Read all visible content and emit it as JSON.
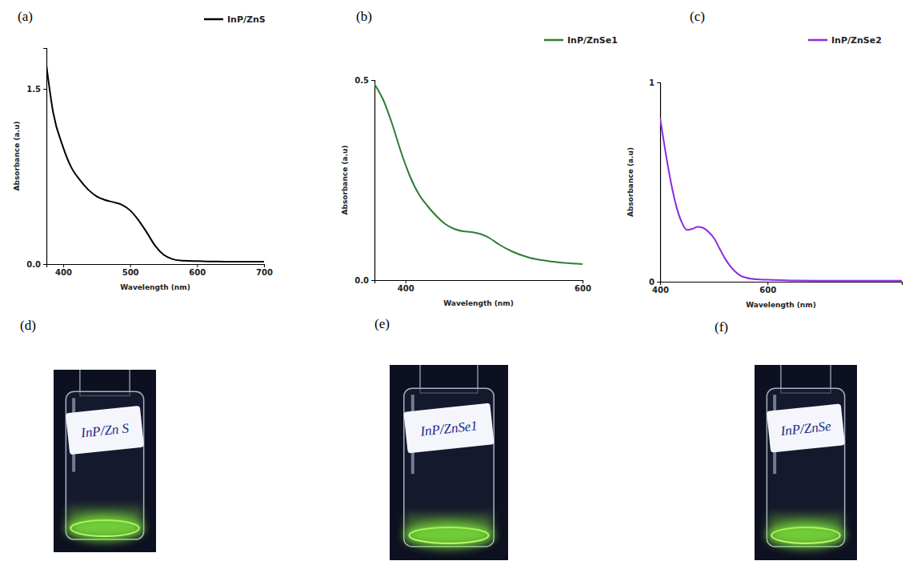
{
  "chart_data": [
    {
      "type": "line",
      "xlabel": "Wavelength (nm)",
      "ylabel": "Absorbance (a.u)",
      "x": [
        375,
        385,
        400,
        412,
        425,
        437,
        450,
        462,
        475,
        487,
        500,
        512,
        525,
        537,
        550,
        562,
        575,
        600,
        625,
        650,
        675,
        700
      ],
      "series": [
        {
          "name": "InP/ZnS",
          "color": "#000000",
          "values": [
            1.7,
            1.3,
            1.0,
            0.83,
            0.72,
            0.64,
            0.58,
            0.55,
            0.53,
            0.51,
            0.46,
            0.38,
            0.27,
            0.16,
            0.08,
            0.045,
            0.03,
            0.025,
            0.022,
            0.02,
            0.02,
            0.02
          ]
        }
      ],
      "xlim": [
        375,
        700
      ],
      "xticks": [
        400,
        500,
        600,
        700
      ],
      "ylim": [
        0,
        1.85
      ],
      "yticks": [
        {
          "value": 0,
          "label": "0.0"
        },
        {
          "value": 1.5,
          "label": "1.5"
        }
      ],
      "legend": "top-right"
    },
    {
      "type": "line",
      "xlabel": "Wavelength (nm)",
      "ylabel": "Absorbance (a.u)",
      "x": [
        365,
        375,
        385,
        395,
        405,
        415,
        425,
        435,
        445,
        455,
        465,
        475,
        485,
        495,
        505,
        520,
        540,
        560,
        580,
        600
      ],
      "series": [
        {
          "name": "InP/ZnSe1",
          "color": "#2e7d32",
          "values": [
            0.49,
            0.45,
            0.39,
            0.32,
            0.26,
            0.215,
            0.185,
            0.16,
            0.14,
            0.128,
            0.122,
            0.12,
            0.115,
            0.105,
            0.09,
            0.072,
            0.056,
            0.048,
            0.043,
            0.04
          ]
        }
      ],
      "xlim": [
        365,
        600
      ],
      "xticks": [
        400,
        600
      ],
      "ylim": [
        0,
        0.5
      ],
      "yticks": [
        {
          "value": 0,
          "label": "0.0"
        },
        {
          "value": 0.5,
          "label": "0.5"
        }
      ],
      "legend": "top-right"
    },
    {
      "type": "line",
      "xlabel": "Wavelength (nm)",
      "ylabel": "Absorbance (a.u)",
      "x": [
        400,
        410,
        420,
        430,
        440,
        450,
        460,
        470,
        480,
        490,
        500,
        510,
        520,
        530,
        540,
        550,
        560,
        580,
        600,
        650,
        700,
        750,
        800,
        850
      ],
      "series": [
        {
          "name": "InP/ZnSe2",
          "color": "#8a2be2",
          "values": [
            0.82,
            0.65,
            0.5,
            0.38,
            0.3,
            0.26,
            0.265,
            0.275,
            0.27,
            0.25,
            0.22,
            0.17,
            0.12,
            0.08,
            0.05,
            0.03,
            0.02,
            0.012,
            0.01,
            0.006,
            0.005,
            0.005,
            0.005,
            0.005
          ]
        }
      ],
      "xlim": [
        400,
        850
      ],
      "xticks": [
        400,
        600
      ],
      "ylim": [
        0,
        1
      ],
      "yticks": [
        0,
        1
      ],
      "legend": "top-right"
    }
  ],
  "panels": [
    "(a)",
    "(b)",
    "(c)"
  ],
  "photos": [
    {
      "panel": "(d)",
      "label": "InP/Zn S"
    },
    {
      "panel": "(e)",
      "label": "InP/ZnSe1"
    },
    {
      "panel": "(f)",
      "label": "InP/ZnSe"
    }
  ]
}
